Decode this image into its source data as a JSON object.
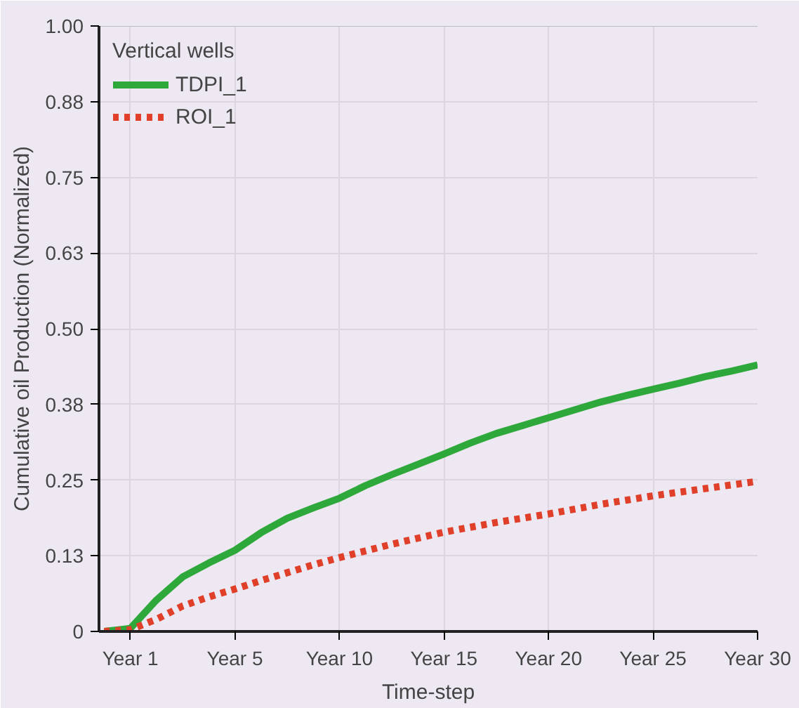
{
  "chart_data": {
    "type": "line",
    "xlabel": "Time-step",
    "ylabel": "Cumulative oil Production (Normalized)",
    "legend_title": "Vertical wells",
    "legend": "top left",
    "grid": true,
    "ylim": [
      0,
      1.0
    ],
    "categories": [
      null,
      "Year 1",
      null,
      null,
      null,
      "Year 5",
      null,
      null,
      null,
      "Year 10",
      null,
      null,
      null,
      "Year 15",
      null,
      null,
      null,
      "Year 20",
      null,
      null,
      null,
      "Year 25",
      null,
      null,
      null,
      "Year 30"
    ],
    "yticks": [
      {
        "value": 0,
        "label": "0"
      },
      {
        "value": 0.125,
        "label": "0.13"
      },
      {
        "value": 0.25,
        "label": "0.25"
      },
      {
        "value": 0.375,
        "label": "0.38"
      },
      {
        "value": 0.5,
        "label": "0.50"
      },
      {
        "value": 0.625,
        "label": "0.63"
      },
      {
        "value": 0.75,
        "label": "0.75"
      },
      {
        "value": 0.875,
        "label": "0.88"
      },
      {
        "value": 1.0,
        "label": "1.00"
      }
    ],
    "series": [
      {
        "name": "TDPI_1",
        "color": "#2ea83a",
        "line_style": "solid",
        "values": [
          0,
          0.005,
          0.052,
          0.09,
          0.113,
          0.134,
          0.163,
          0.187,
          0.204,
          0.22,
          0.241,
          0.259,
          0.276,
          0.293,
          0.311,
          0.327,
          0.34,
          0.353,
          0.366,
          0.379,
          0.39,
          0.4,
          0.41,
          0.421,
          0.43,
          0.44
        ]
      },
      {
        "name": "ROI_1",
        "color": "#e0402a",
        "line_style": "dotted",
        "values": [
          0,
          0.003,
          0.02,
          0.042,
          0.057,
          0.07,
          0.084,
          0.097,
          0.11,
          0.122,
          0.133,
          0.144,
          0.154,
          0.164,
          0.172,
          0.18,
          0.187,
          0.194,
          0.202,
          0.21,
          0.217,
          0.224,
          0.23,
          0.236,
          0.242,
          0.248
        ]
      }
    ]
  }
}
